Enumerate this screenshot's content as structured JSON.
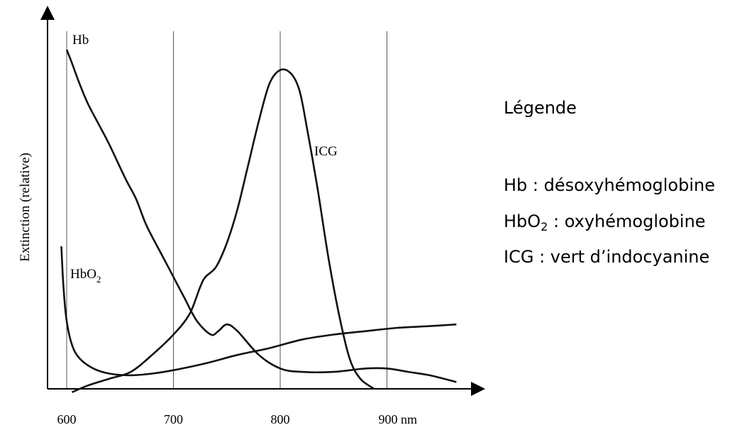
{
  "chart_data": {
    "type": "line",
    "ylabel": "Extinction (relative)",
    "xlabel": "",
    "x_ticks": [
      "600",
      "700",
      "800",
      "900 nm"
    ],
    "x_tick_values": [
      600,
      700,
      800,
      900
    ],
    "xlim": [
      565,
      965
    ],
    "ylim": [
      0,
      1
    ],
    "grid": "vertical lines at 600, 700, 800, 900",
    "legend_position": "right",
    "series": [
      {
        "name": "Hb",
        "x": [
          600,
          605,
          612,
          620,
          630,
          640,
          655,
          665,
          675,
          690,
          700,
          710,
          722,
          735,
          742,
          750,
          760,
          780,
          800,
          820,
          850,
          880,
          900,
          920,
          940,
          965
        ],
        "y": [
          1.0,
          0.96,
          0.9,
          0.84,
          0.78,
          0.72,
          0.62,
          0.56,
          0.48,
          0.39,
          0.33,
          0.27,
          0.2,
          0.16,
          0.17,
          0.19,
          0.17,
          0.1,
          0.06,
          0.05,
          0.05,
          0.06,
          0.06,
          0.05,
          0.04,
          0.02
        ]
      },
      {
        "name": "HbO2",
        "x": [
          595,
          597,
          600,
          605,
          612,
          625,
          640,
          660,
          680,
          700,
          730,
          760,
          790,
          820,
          850,
          880,
          910,
          940,
          965
        ],
        "y": [
          0.42,
          0.3,
          0.2,
          0.13,
          0.09,
          0.06,
          0.045,
          0.04,
          0.045,
          0.055,
          0.075,
          0.1,
          0.12,
          0.145,
          0.16,
          0.17,
          0.18,
          0.185,
          0.19
        ]
      },
      {
        "name": "ICG",
        "x": [
          605,
          620,
          640,
          660,
          680,
          700,
          715,
          725,
          730,
          740,
          750,
          760,
          770,
          780,
          790,
          800,
          810,
          818,
          825,
          835,
          845,
          855,
          865,
          875,
          888
        ],
        "y": [
          -0.01,
          0.01,
          0.03,
          0.05,
          0.1,
          0.16,
          0.22,
          0.3,
          0.33,
          0.36,
          0.43,
          0.53,
          0.66,
          0.79,
          0.9,
          0.94,
          0.93,
          0.88,
          0.77,
          0.59,
          0.39,
          0.22,
          0.09,
          0.03,
          0.0
        ]
      }
    ],
    "annotations": {
      "hb": "Hb",
      "hbo2_base": "HbO",
      "hbo2_sub": "2",
      "icg": "ICG"
    }
  },
  "legend": {
    "title": "Légende",
    "entries": [
      {
        "symbol": "Hb",
        "sub": "",
        "text": " : désoxyhémoglobine"
      },
      {
        "symbol": "HbO",
        "sub": "2",
        "text": " : oxyhémoglobine"
      },
      {
        "symbol": "ICG",
        "sub": "",
        "text": " : vert d’indocyanine"
      }
    ]
  }
}
